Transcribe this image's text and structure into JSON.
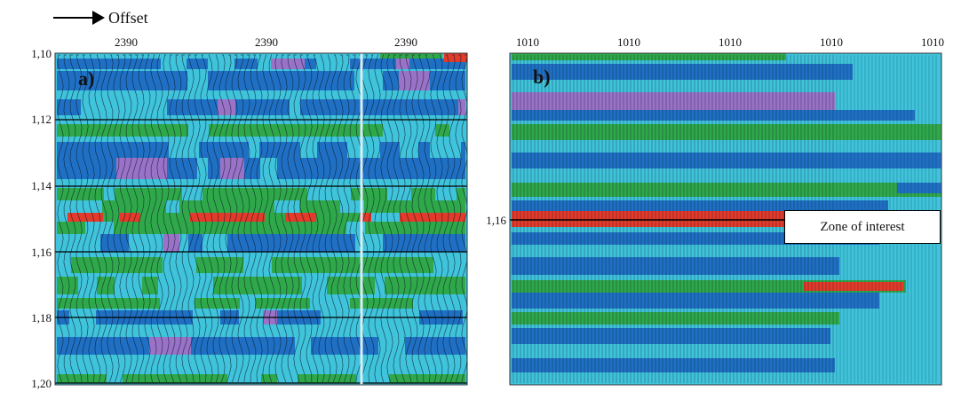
{
  "header": {
    "offset_label": "Offset",
    "arrow_icon": "right-arrow-icon"
  },
  "panel_a": {
    "letter": "a)",
    "x_ticks": [
      "2390",
      "2390",
      "2390"
    ],
    "y_ticks": [
      "1,10",
      "1,12",
      "1,14",
      "1,16",
      "1,18",
      "1,20"
    ]
  },
  "panel_b": {
    "letter": "b)",
    "x_ticks": [
      "1010",
      "1010",
      "1010",
      "1010",
      "1010"
    ],
    "y_tick": "1,16",
    "annotation": "Zone of interest"
  },
  "colors": {
    "cyan": "#3fc4dc",
    "blue": "#1f70c4",
    "green": "#2fa84a",
    "red": "#e33a2a",
    "purple": "#9a72c8",
    "trace": "#0b1a2a"
  }
}
